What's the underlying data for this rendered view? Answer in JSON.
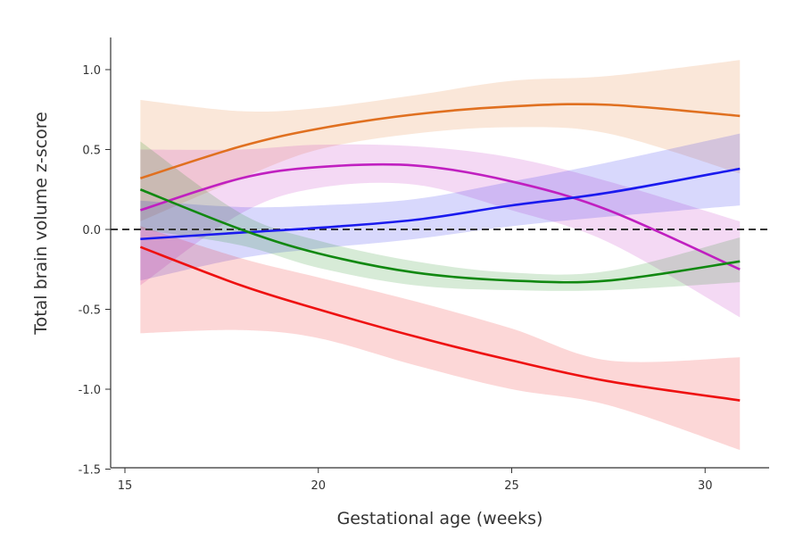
{
  "chart_data": {
    "type": "line",
    "xlabel": "Gestational age (weeks)",
    "ylabel": "Total brain volume z-score",
    "xlim": [
      14.6,
      31.6
    ],
    "ylim": [
      -1.5,
      1.2
    ],
    "xticks": [
      15,
      20,
      25,
      30
    ],
    "yticks": [
      1.0,
      0.5,
      0.0,
      -0.5,
      -1.0,
      -1.5
    ],
    "ytick_labels": [
      "1.0",
      "0.5",
      "0.0",
      "-0.5",
      "-1.0",
      "-1.5"
    ],
    "grid": false,
    "reference_line": {
      "y": 0.0,
      "style": "dashed",
      "color": "#333333"
    },
    "x": [
      15.4,
      18,
      20,
      22.5,
      25,
      27.5,
      30.9
    ],
    "series": [
      {
        "color": "#e07020",
        "values": [
          0.32,
          0.52,
          0.63,
          0.72,
          0.77,
          0.78,
          0.71
        ],
        "upper": [
          0.81,
          0.74,
          0.76,
          0.84,
          0.93,
          0.96,
          1.06
        ],
        "lower": [
          0.05,
          0.32,
          0.5,
          0.6,
          0.64,
          0.6,
          0.35
        ]
      },
      {
        "color": "#c020c0",
        "values": [
          0.12,
          0.32,
          0.39,
          0.4,
          0.3,
          0.12,
          -0.25
        ],
        "upper": [
          0.5,
          0.5,
          0.53,
          0.52,
          0.45,
          0.3,
          0.05
        ],
        "lower": [
          -0.35,
          0.1,
          0.26,
          0.28,
          0.12,
          -0.08,
          -0.55
        ]
      },
      {
        "color": "#1a1aee",
        "values": [
          -0.06,
          -0.02,
          0.01,
          0.06,
          0.15,
          0.23,
          0.38
        ],
        "upper": [
          0.18,
          0.14,
          0.15,
          0.19,
          0.3,
          0.42,
          0.6
        ],
        "lower": [
          -0.32,
          -0.18,
          -0.12,
          -0.06,
          0.02,
          0.08,
          0.15
        ]
      },
      {
        "color": "#118811",
        "values": [
          0.25,
          0.0,
          -0.15,
          -0.27,
          -0.32,
          -0.32,
          -0.2
        ],
        "upper": [
          0.55,
          0.1,
          -0.07,
          -0.2,
          -0.27,
          -0.26,
          -0.05
        ],
        "lower": [
          0.0,
          -0.1,
          -0.24,
          -0.35,
          -0.38,
          -0.38,
          -0.33
        ]
      },
      {
        "color": "#ee1111",
        "values": [
          -0.11,
          -0.35,
          -0.5,
          -0.67,
          -0.82,
          -0.95,
          -1.07
        ],
        "upper": [
          0.02,
          -0.18,
          -0.3,
          -0.45,
          -0.62,
          -0.82,
          -0.8
        ],
        "lower": [
          -0.65,
          -0.63,
          -0.68,
          -0.85,
          -1.0,
          -1.1,
          -1.38
        ]
      }
    ]
  }
}
